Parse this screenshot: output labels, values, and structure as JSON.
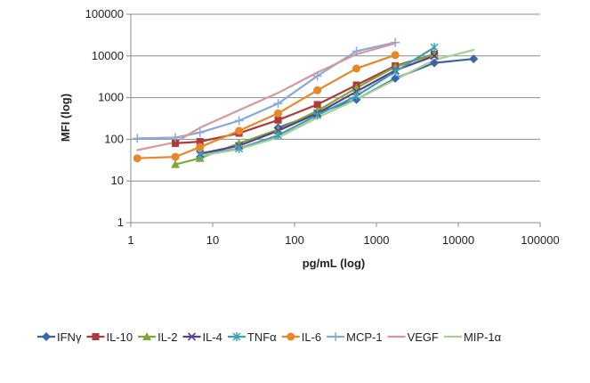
{
  "chart_data": {
    "type": "line",
    "title": "",
    "xlabel": "pg/mL (log)",
    "ylabel": "MFI (log)",
    "x_scale": "log",
    "y_scale": "log",
    "xlim": [
      1,
      100000
    ],
    "ylim": [
      1,
      100000
    ],
    "x_ticks": [
      "1",
      "10",
      "100",
      "1000",
      "10000",
      "100000"
    ],
    "y_ticks": [
      "1",
      "10",
      "100",
      "1000",
      "10000",
      "100000"
    ],
    "grid": "horizontal",
    "legend_position": "bottom",
    "series": [
      {
        "name": "IFNγ",
        "color": "#3a64b0",
        "marker": "diamond",
        "points": [
          [
            63,
            190
          ],
          [
            190,
            420
          ],
          [
            570,
            900
          ],
          [
            1700,
            2900
          ],
          [
            5100,
            6800
          ],
          [
            15400,
            8500
          ]
        ]
      },
      {
        "name": "IL-10",
        "color": "#b03a3a",
        "marker": "square",
        "points": [
          [
            3.5,
            80
          ],
          [
            7,
            88
          ],
          [
            21,
            140
          ],
          [
            63,
            290
          ],
          [
            190,
            680
          ],
          [
            570,
            2000
          ],
          [
            1700,
            5800
          ],
          [
            5100,
            11000
          ]
        ]
      },
      {
        "name": "IL-2",
        "color": "#7fa83a",
        "marker": "triangle",
        "points": [
          [
            3.5,
            25
          ],
          [
            7,
            35
          ],
          [
            21,
            80
          ],
          [
            63,
            170
          ],
          [
            190,
            480
          ],
          [
            570,
            1700
          ],
          [
            1700,
            5500
          ],
          [
            5100,
            11000
          ]
        ]
      },
      {
        "name": "IL-4",
        "color": "#5a3e8c",
        "marker": "x",
        "points": [
          [
            7,
            45
          ],
          [
            21,
            70
          ],
          [
            63,
            160
          ],
          [
            190,
            420
          ],
          [
            570,
            1400
          ],
          [
            1700,
            4500
          ],
          [
            5100,
            10000
          ]
        ]
      },
      {
        "name": "TNFα",
        "color": "#3aa0b8",
        "marker": "star",
        "points": [
          [
            7,
            42
          ],
          [
            21,
            60
          ],
          [
            63,
            125
          ],
          [
            190,
            380
          ],
          [
            570,
            1100
          ],
          [
            1700,
            4200
          ],
          [
            5100,
            16000
          ]
        ]
      },
      {
        "name": "IL-6",
        "color": "#e8872a",
        "marker": "circle",
        "points": [
          [
            1.2,
            35
          ],
          [
            3.5,
            38
          ],
          [
            7,
            65
          ],
          [
            21,
            160
          ],
          [
            63,
            420
          ],
          [
            190,
            1500
          ],
          [
            570,
            5000
          ],
          [
            1700,
            10500
          ]
        ]
      },
      {
        "name": "MCP-1",
        "color": "#8aa8d8",
        "marker": "plus",
        "points": [
          [
            1.2,
            105
          ],
          [
            3.5,
            110
          ],
          [
            7,
            145
          ],
          [
            21,
            280
          ],
          [
            63,
            720
          ],
          [
            190,
            3300
          ],
          [
            570,
            13000
          ],
          [
            1700,
            21000
          ]
        ]
      },
      {
        "name": "VEGF",
        "color": "#d89898",
        "marker": "none",
        "points": [
          [
            1.2,
            55
          ],
          [
            3.5,
            85
          ],
          [
            7,
            190
          ],
          [
            21,
            500
          ],
          [
            63,
            1300
          ],
          [
            190,
            4000
          ],
          [
            570,
            11000
          ],
          [
            1700,
            20000
          ]
        ]
      },
      {
        "name": "MIP-1α",
        "color": "#a8d090",
        "marker": "none",
        "points": [
          [
            7,
            40
          ],
          [
            21,
            58
          ],
          [
            63,
            110
          ],
          [
            190,
            330
          ],
          [
            570,
            900
          ],
          [
            1700,
            2700
          ],
          [
            5100,
            8000
          ],
          [
            15400,
            14000
          ]
        ]
      }
    ]
  }
}
